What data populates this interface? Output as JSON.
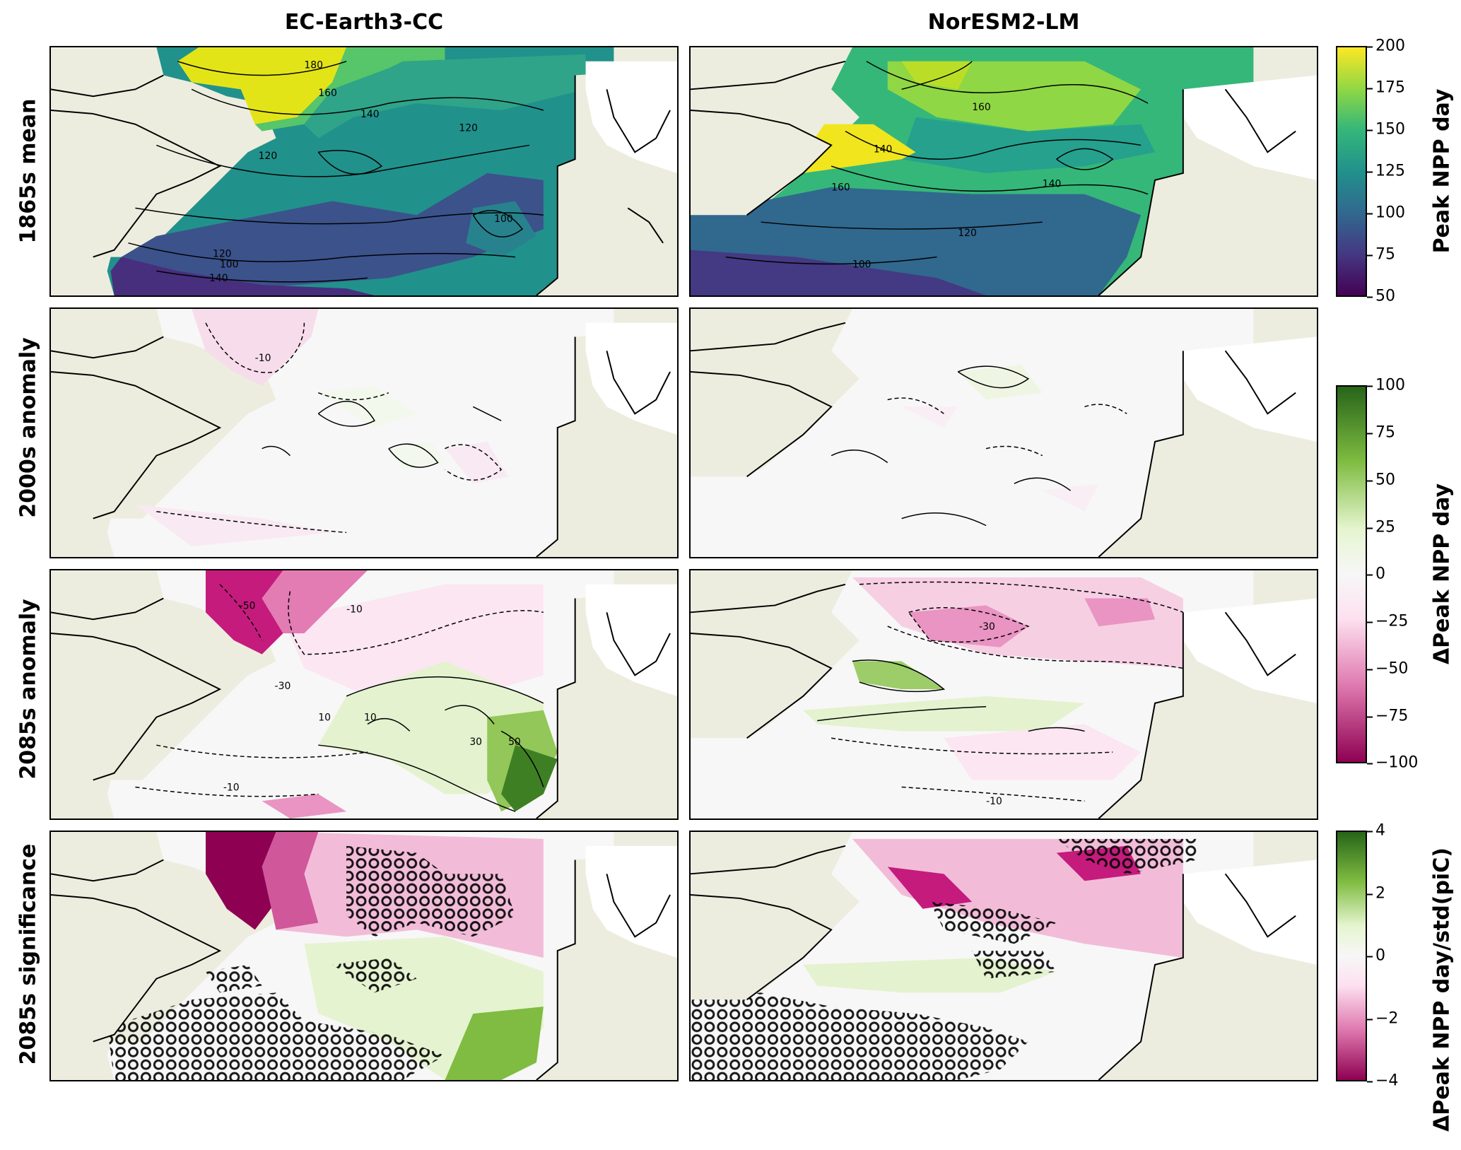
{
  "columns": [
    "EC-Earth3-CC",
    "NorESM2-LM"
  ],
  "rows": [
    "1865s mean",
    "2000s anomaly",
    "2085s anomaly",
    "2085s significance"
  ],
  "colorbars": {
    "mean": {
      "label": "Peak NPP day",
      "ticks": [
        "200",
        "175",
        "150",
        "125",
        "100",
        "75",
        "50"
      ],
      "colormap": "viridis",
      "colors": [
        "#fde725",
        "#8fd744",
        "#35b779",
        "#21918c",
        "#31688e",
        "#443983",
        "#440154"
      ]
    },
    "anomaly": {
      "label": "ΔPeak NPP day",
      "ticks": [
        "100",
        "75",
        "50",
        "25",
        "0",
        "−25",
        "−50",
        "−75",
        "−100"
      ],
      "colormap": "PiYG",
      "colors": [
        "#276419",
        "#7fbc41",
        "#e6f5d0",
        "#f7f7f7",
        "#fde0ef",
        "#de77ae",
        "#c51b7d"
      ]
    },
    "significance": {
      "label": "ΔPeak NPP day/std(piC)",
      "ticks": [
        "4",
        "2",
        "0",
        "−2",
        "−4"
      ],
      "colormap": "PiYG",
      "colors": [
        "#276419",
        "#7fbc41",
        "#e6f5d0",
        "#f7f7f7",
        "#fde0ef",
        "#de77ae",
        "#c51b7d"
      ]
    }
  },
  "contour_labels": {
    "ec_mean": [
      "180",
      "160",
      "140",
      "120",
      "120",
      "100",
      "100",
      "120",
      "140"
    ],
    "nor_mean": [
      "160",
      "140",
      "160",
      "140",
      "120",
      "100"
    ],
    "ec_2000": [
      "-10"
    ],
    "ec_2085": [
      "-50",
      "-10",
      "-30",
      "10",
      "10",
      "30",
      "50",
      "-10"
    ],
    "nor_2085": [
      "-30",
      "-10"
    ]
  },
  "colors": {
    "land": "#ecedde",
    "ocean_mask": "#ffffff",
    "coastline": "#000000"
  }
}
